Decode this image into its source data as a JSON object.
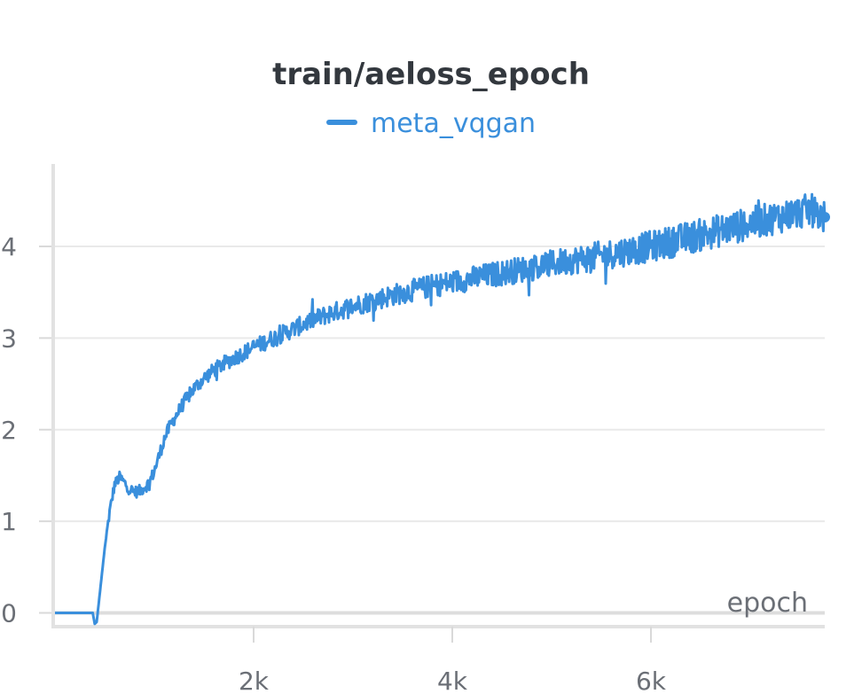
{
  "chart_data": {
    "type": "line",
    "title": "train/aeloss_epoch",
    "xlabel": "epoch",
    "ylabel": "",
    "xlim": [
      0,
      7750
    ],
    "ylim": [
      -0.15,
      4.9
    ],
    "x_ticks": [
      2000,
      4000,
      6000
    ],
    "x_tick_labels": [
      "2k",
      "4k",
      "6k"
    ],
    "y_ticks": [
      0,
      1,
      2,
      3,
      4
    ],
    "y_tick_labels": [
      "0",
      "1",
      "2",
      "3",
      "4"
    ],
    "grid": true,
    "legend_position": "top-center",
    "series": [
      {
        "name": "meta_vqgan",
        "color": "#3a8fdc",
        "x": [
          0,
          380,
          400,
          420,
          460,
          500,
          550,
          600,
          650,
          700,
          750,
          800,
          850,
          900,
          950,
          1000,
          1050,
          1100,
          1150,
          1200,
          1300,
          1400,
          1500,
          1600,
          1700,
          1800,
          1900,
          2000,
          2100,
          2200,
          2400,
          2600,
          2800,
          3000,
          3200,
          3400,
          3600,
          3800,
          4000,
          4200,
          4400,
          4600,
          4800,
          5000,
          5200,
          5400,
          5600,
          5800,
          6000,
          6200,
          6400,
          6600,
          6800,
          7000,
          7200,
          7400,
          7600,
          7750
        ],
        "values": [
          0,
          0,
          -0.12,
          -0.1,
          0.3,
          0.7,
          1.1,
          1.4,
          1.48,
          1.42,
          1.35,
          1.32,
          1.33,
          1.37,
          1.42,
          1.55,
          1.72,
          1.9,
          2.02,
          2.12,
          2.3,
          2.45,
          2.56,
          2.65,
          2.72,
          2.78,
          2.84,
          2.9,
          2.95,
          3.0,
          3.1,
          3.2,
          3.28,
          3.35,
          3.41,
          3.47,
          3.52,
          3.57,
          3.61,
          3.65,
          3.69,
          3.73,
          3.77,
          3.81,
          3.85,
          3.88,
          3.92,
          3.96,
          4.0,
          4.05,
          4.1,
          4.15,
          4.2,
          4.25,
          4.3,
          4.35,
          4.4,
          4.32
        ]
      }
    ]
  }
}
